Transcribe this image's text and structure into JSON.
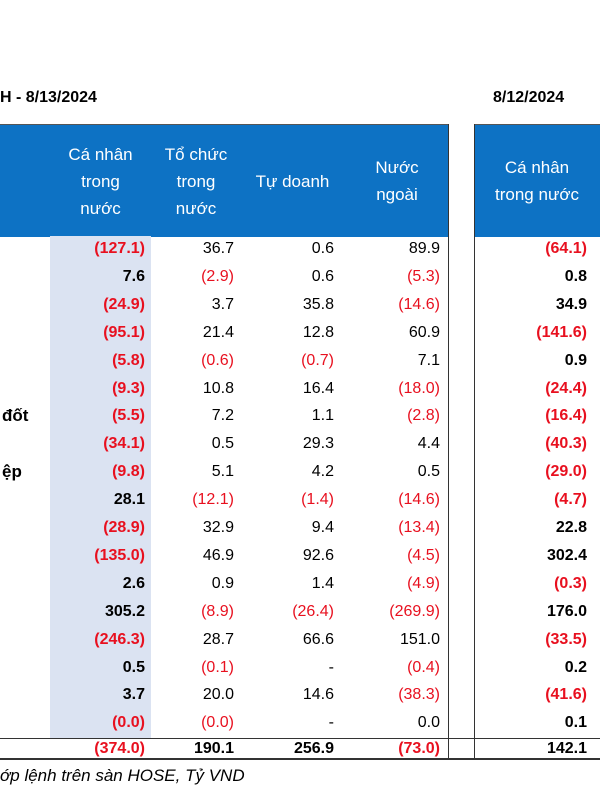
{
  "title_left": "H - 8/13/2024",
  "title_right": "8/12/2024",
  "headers": [
    "Cá nhân\ntrong\nnước",
    "Tổ chức\ntrong\nnước",
    "Tự doanh",
    "Nước\nngoài"
  ],
  "header_right": "Cá nhân\ntrong nước",
  "rows": [
    {
      "label": "",
      "v": [
        "(127.1)",
        "36.7",
        "0.6",
        "89.9",
        "(64.1)"
      ]
    },
    {
      "label": "",
      "v": [
        "7.6",
        "(2.9)",
        "0.6",
        "(5.3)",
        "0.8"
      ]
    },
    {
      "label": "",
      "v": [
        "(24.9)",
        "3.7",
        "35.8",
        "(14.6)",
        "34.9"
      ]
    },
    {
      "label": "",
      "v": [
        "(95.1)",
        "21.4",
        "12.8",
        "60.9",
        "(141.6)"
      ]
    },
    {
      "label": "",
      "v": [
        "(5.8)",
        "(0.6)",
        "(0.7)",
        "7.1",
        "0.9"
      ]
    },
    {
      "label": "",
      "v": [
        "(9.3)",
        "10.8",
        "16.4",
        "(18.0)",
        "(24.4)"
      ]
    },
    {
      "label": "đốt",
      "v": [
        "(5.5)",
        "7.2",
        "1.1",
        "(2.8)",
        "(16.4)"
      ]
    },
    {
      "label": "",
      "v": [
        "(34.1)",
        "0.5",
        "29.3",
        "4.4",
        "(40.3)"
      ]
    },
    {
      "label": "ệp",
      "v": [
        "(9.8)",
        "5.1",
        "4.2",
        "0.5",
        "(29.0)"
      ]
    },
    {
      "label": "",
      "v": [
        "28.1",
        "(12.1)",
        "(1.4)",
        "(14.6)",
        "(4.7)"
      ]
    },
    {
      "label": "",
      "v": [
        "(28.9)",
        "32.9",
        "9.4",
        "(13.4)",
        "22.8"
      ]
    },
    {
      "label": "",
      "v": [
        "(135.0)",
        "46.9",
        "92.6",
        "(4.5)",
        "302.4"
      ]
    },
    {
      "label": "",
      "v": [
        "2.6",
        "0.9",
        "1.4",
        "(4.9)",
        "(0.3)"
      ]
    },
    {
      "label": "",
      "v": [
        "305.2",
        "(8.9)",
        "(26.4)",
        "(269.9)",
        "176.0"
      ]
    },
    {
      "label": "",
      "v": [
        "(246.3)",
        "28.7",
        "66.6",
        "151.0",
        "(33.5)"
      ]
    },
    {
      "label": "",
      "v": [
        "0.5",
        "(0.1)",
        "-",
        "(0.4)",
        "0.2"
      ]
    },
    {
      "label": "",
      "v": [
        "3.7",
        "20.0",
        "14.6",
        "(38.3)",
        "(41.6)"
      ]
    },
    {
      "label": "",
      "v": [
        "(0.0)",
        "(0.0)",
        "-",
        "0.0",
        "0.1"
      ]
    }
  ],
  "total": [
    "(374.0)",
    "190.1",
    "256.9",
    "(73.0)",
    "142.1"
  ],
  "footer": "ớp lệnh trên sàn HOSE, Tỷ VND",
  "colors": {
    "header_bg": "#0d72c4",
    "shade": "#dbe3f2",
    "negative": "#e8101f"
  }
}
